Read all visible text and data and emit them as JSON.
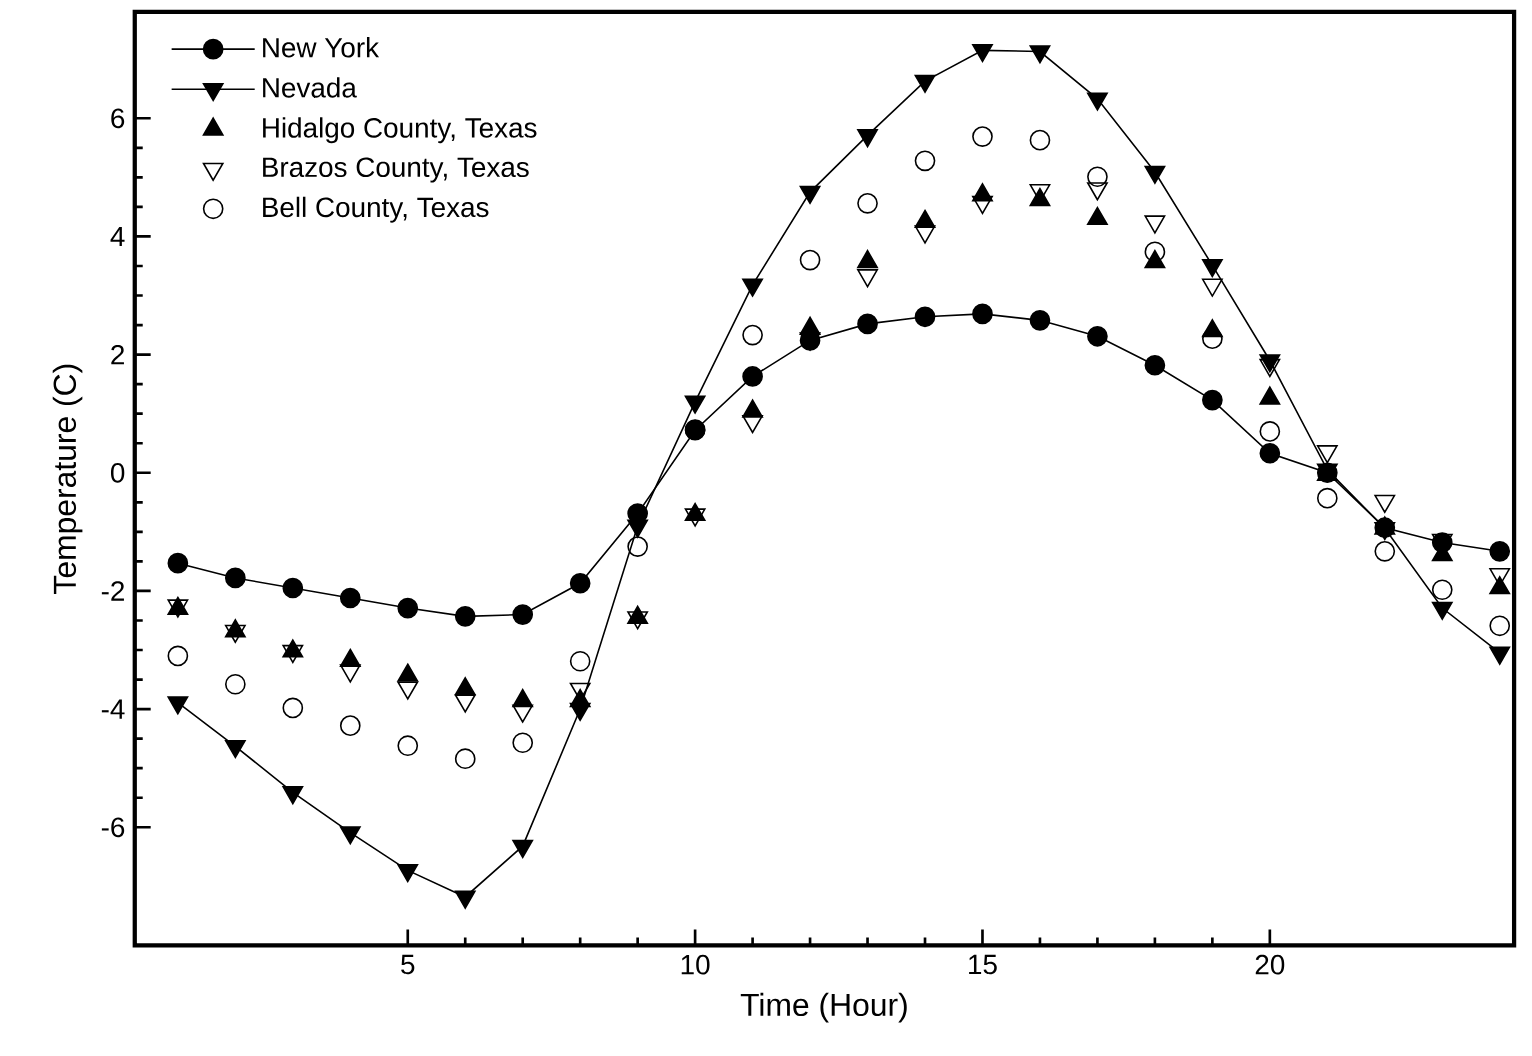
{
  "chart_data": {
    "type": "line",
    "xlabel": "Time (Hour)",
    "ylabel": "Temperature (C)",
    "x": [
      1,
      2,
      3,
      4,
      5,
      6,
      7,
      8,
      9,
      10,
      11,
      12,
      13,
      14,
      15,
      16,
      17,
      18,
      19,
      20,
      21,
      22,
      23,
      24
    ],
    "xlim": [
      0.25,
      24.25
    ],
    "xticks": [
      5,
      10,
      15,
      20
    ],
    "ylim": [
      -8,
      7.8
    ],
    "yticks": [
      -6,
      -4,
      -2,
      0,
      2,
      4,
      6
    ],
    "legend": "top left",
    "grid": false,
    "series": [
      {
        "name": "New York",
        "color": "#000000",
        "marker": "circle",
        "line_style": "solid",
        "values": [
          -1.53,
          -1.78,
          -1.95,
          -2.12,
          -2.29,
          -2.43,
          -2.4,
          -1.87,
          -0.69,
          0.72,
          1.63,
          2.24,
          2.52,
          2.64,
          2.69,
          2.58,
          2.31,
          1.82,
          1.23,
          0.33,
          0.0,
          -0.93,
          -1.18,
          -1.33
        ]
      },
      {
        "name": "Nevada",
        "color": "#000000",
        "marker": "triangle_down",
        "line_style": "solid",
        "values": [
          -3.89,
          -4.63,
          -5.41,
          -6.09,
          -6.73,
          -7.18,
          -6.32,
          -4.0,
          -0.9,
          1.2,
          3.18,
          4.75,
          5.71,
          6.63,
          7.15,
          7.13,
          6.33,
          5.09,
          3.51,
          1.9,
          0.05,
          -0.94,
          -2.29,
          -3.05
        ]
      },
      {
        "name": "Hidalgo County, Texas",
        "color": "#000000",
        "marker": "triangle",
        "type": "scatter",
        "values": [
          -2.3,
          -2.68,
          -3.02,
          -3.18,
          -3.43,
          -3.66,
          -3.86,
          -3.86,
          -2.45,
          -0.71,
          1.04,
          2.44,
          3.57,
          4.25,
          4.7,
          4.62,
          4.3,
          3.57,
          2.4,
          1.26,
          -0.03,
          -0.94,
          -1.39,
          -1.95
        ]
      },
      {
        "name": "Brazos County, Texas",
        "color": "#000000",
        "marker": "triangle_down_open",
        "type": "scatter",
        "values": [
          -2.25,
          -2.68,
          -3.02,
          -3.35,
          -3.64,
          -3.86,
          -4.03,
          -3.66,
          -2.45,
          -0.71,
          0.87,
          2.27,
          3.34,
          4.08,
          4.58,
          4.78,
          4.81,
          4.25,
          3.18,
          1.82,
          0.36,
          -0.48,
          -1.14,
          -1.72
        ]
      },
      {
        "name": "Bell County, Texas",
        "color": "#000000",
        "marker": "circle_open",
        "type": "scatter",
        "values": [
          -3.1,
          -3.58,
          -3.98,
          -4.28,
          -4.62,
          -4.84,
          -4.57,
          -3.19,
          -1.25,
          0.73,
          2.33,
          3.6,
          4.56,
          5.28,
          5.69,
          5.63,
          5.01,
          3.74,
          2.27,
          0.7,
          -0.43,
          -1.33,
          -1.98,
          -2.59
        ]
      }
    ]
  }
}
